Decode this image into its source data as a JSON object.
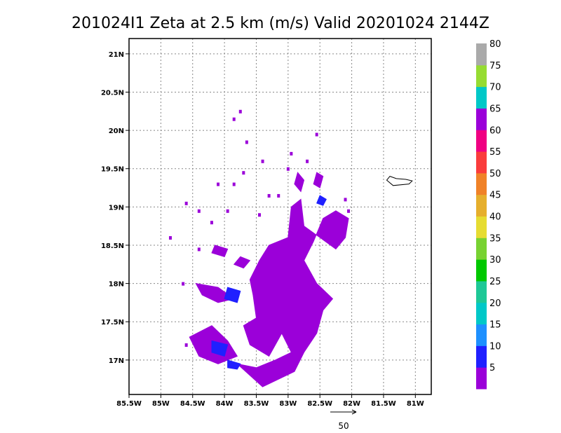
{
  "chart_data": {
    "type": "heatmap",
    "title": "201024I1  Zeta at 2.5 km (m/s) Valid 20201024  2144Z",
    "xlim": [
      -85.5,
      -80.75
    ],
    "ylim": [
      16.55,
      21.2
    ],
    "grid": true,
    "x_ticks": [
      {
        "value": -85.5,
        "label": "85.5W"
      },
      {
        "value": -85,
        "label": "85W"
      },
      {
        "value": -84.5,
        "label": "84.5W"
      },
      {
        "value": -84,
        "label": "84W"
      },
      {
        "value": -83.5,
        "label": "83.5W"
      },
      {
        "value": -83,
        "label": "83W"
      },
      {
        "value": -82.5,
        "label": "82.5W"
      },
      {
        "value": -82,
        "label": "82W"
      },
      {
        "value": -81.5,
        "label": "81.5W"
      },
      {
        "value": -81,
        "label": "81W"
      }
    ],
    "y_ticks": [
      {
        "value": 17,
        "label": "17N"
      },
      {
        "value": 17.5,
        "label": "17.5N"
      },
      {
        "value": 18,
        "label": "18N"
      },
      {
        "value": 18.5,
        "label": "18.5N"
      },
      {
        "value": 19,
        "label": "19N"
      },
      {
        "value": 19.5,
        "label": "19.5N"
      },
      {
        "value": 20,
        "label": "20N"
      },
      {
        "value": 20.5,
        "label": "20.5N"
      },
      {
        "value": 21,
        "label": "21N"
      }
    ],
    "colorbar": {
      "labels": [
        "5",
        "10",
        "15",
        "20",
        "25",
        "30",
        "35",
        "40",
        "45",
        "50",
        "55",
        "60",
        "65",
        "70",
        "75",
        "80"
      ],
      "colors": [
        "#9b00d9",
        "#2020ff",
        "#1e90ff",
        "#00c8c8",
        "#1ec896",
        "#00c800",
        "#78d232",
        "#e6dc32",
        "#e6af2d",
        "#f08228",
        "#fa3c3c",
        "#f00082",
        "#9b00d9",
        "#00c8c8",
        "#96dc32",
        "#aaaaaa"
      ]
    },
    "regions": [
      {
        "value": 5,
        "polygon": [
          [
            -83.4,
            16.65
          ],
          [
            -82.9,
            16.85
          ],
          [
            -82.75,
            17.1
          ],
          [
            -82.55,
            17.35
          ],
          [
            -82.45,
            17.65
          ],
          [
            -82.3,
            17.8
          ],
          [
            -82.55,
            18.0
          ],
          [
            -82.75,
            18.3
          ],
          [
            -82.6,
            18.55
          ],
          [
            -82.45,
            18.85
          ],
          [
            -82.25,
            18.95
          ],
          [
            -82.05,
            18.85
          ],
          [
            -82.1,
            18.6
          ],
          [
            -82.25,
            18.45
          ],
          [
            -82.5,
            18.6
          ],
          [
            -82.75,
            18.75
          ],
          [
            -82.8,
            19.1
          ],
          [
            -82.95,
            19.0
          ],
          [
            -83.0,
            18.6
          ],
          [
            -83.3,
            18.5
          ],
          [
            -83.45,
            18.3
          ],
          [
            -83.6,
            18.05
          ],
          [
            -83.55,
            17.85
          ],
          [
            -83.5,
            17.55
          ],
          [
            -83.7,
            17.45
          ],
          [
            -83.6,
            17.2
          ],
          [
            -83.3,
            17.05
          ],
          [
            -83.1,
            17.35
          ],
          [
            -82.95,
            17.1
          ],
          [
            -83.2,
            17.0
          ],
          [
            -83.5,
            16.9
          ],
          [
            -83.8,
            16.95
          ]
        ]
      },
      {
        "value": 5,
        "polygon": [
          [
            -84.55,
            17.3
          ],
          [
            -84.2,
            17.45
          ],
          [
            -83.95,
            17.25
          ],
          [
            -83.8,
            17.05
          ],
          [
            -84.1,
            16.95
          ],
          [
            -84.4,
            17.05
          ]
        ]
      },
      {
        "value": 5,
        "polygon": [
          [
            -84.45,
            18.0
          ],
          [
            -84.1,
            17.95
          ],
          [
            -83.85,
            17.8
          ],
          [
            -84.1,
            17.75
          ],
          [
            -84.35,
            17.85
          ]
        ]
      },
      {
        "value": 5,
        "polygon": [
          [
            -84.15,
            18.5
          ],
          [
            -83.95,
            18.45
          ],
          [
            -84.0,
            18.35
          ],
          [
            -84.2,
            18.4
          ]
        ]
      },
      {
        "value": 5,
        "polygon": [
          [
            -83.75,
            18.35
          ],
          [
            -83.6,
            18.3
          ],
          [
            -83.7,
            18.2
          ],
          [
            -83.85,
            18.25
          ]
        ]
      },
      {
        "value": 5,
        "polygon": [
          [
            -82.85,
            19.45
          ],
          [
            -82.75,
            19.35
          ],
          [
            -82.8,
            19.2
          ],
          [
            -82.9,
            19.3
          ]
        ]
      },
      {
        "value": 5,
        "polygon": [
          [
            -82.55,
            19.45
          ],
          [
            -82.45,
            19.4
          ],
          [
            -82.5,
            19.25
          ],
          [
            -82.6,
            19.3
          ]
        ]
      },
      {
        "value": 10,
        "polygon": [
          [
            -84.2,
            17.25
          ],
          [
            -83.95,
            17.2
          ],
          [
            -84.0,
            17.05
          ],
          [
            -84.2,
            17.1
          ]
        ]
      },
      {
        "value": 10,
        "polygon": [
          [
            -83.95,
            17.95
          ],
          [
            -83.75,
            17.9
          ],
          [
            -83.8,
            17.75
          ],
          [
            -84.0,
            17.8
          ]
        ]
      },
      {
        "value": 10,
        "polygon": [
          [
            -83.95,
            17.0
          ],
          [
            -83.75,
            16.95
          ],
          [
            -83.8,
            16.88
          ],
          [
            -83.95,
            16.9
          ]
        ]
      },
      {
        "value": 10,
        "polygon": [
          [
            -82.5,
            19.15
          ],
          [
            -82.4,
            19.1
          ],
          [
            -82.45,
            19.02
          ],
          [
            -82.55,
            19.05
          ]
        ]
      }
    ],
    "speckles": [
      [
        -83.85,
        20.15
      ],
      [
        -83.75,
        20.25
      ],
      [
        -83.65,
        19.85
      ],
      [
        -82.55,
        19.95
      ],
      [
        -82.95,
        19.7
      ],
      [
        -83.4,
        19.6
      ],
      [
        -84.1,
        19.3
      ],
      [
        -83.85,
        19.3
      ],
      [
        -83.7,
        19.45
      ],
      [
        -84.6,
        19.05
      ],
      [
        -84.4,
        18.95
      ],
      [
        -84.2,
        18.8
      ],
      [
        -83.45,
        18.9
      ],
      [
        -82.1,
        19.1
      ],
      [
        -82.05,
        18.95
      ],
      [
        -83.0,
        19.5
      ],
      [
        -82.7,
        19.6
      ],
      [
        -83.95,
        18.95
      ],
      [
        -84.85,
        18.6
      ],
      [
        -84.4,
        18.45
      ],
      [
        -83.15,
        19.15
      ],
      [
        -84.6,
        17.2
      ],
      [
        -84.65,
        18.0
      ],
      [
        -83.3,
        19.15
      ]
    ],
    "coastline": [
      [
        -81.45,
        19.35
      ],
      [
        -81.35,
        19.28
      ],
      [
        -81.1,
        19.3
      ],
      [
        -81.05,
        19.34
      ],
      [
        -81.15,
        19.36
      ],
      [
        -81.3,
        19.37
      ],
      [
        -81.4,
        19.4
      ]
    ],
    "reference_vector": {
      "label": "50"
    }
  }
}
